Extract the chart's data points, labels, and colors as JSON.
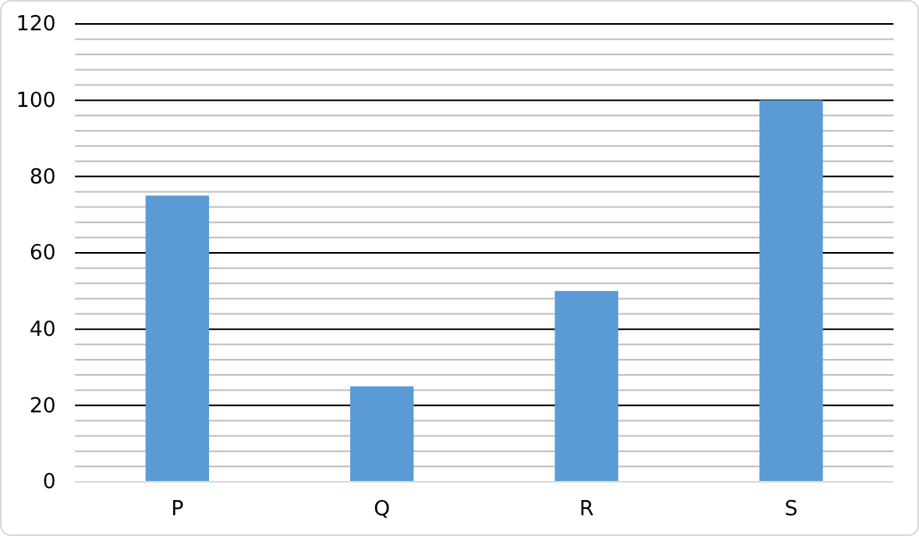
{
  "chart_data": {
    "type": "bar",
    "categories": [
      "P",
      "Q",
      "R",
      "S"
    ],
    "values": [
      75,
      25,
      50,
      100
    ],
    "color": "#5b9bd5",
    "ylim": [
      0,
      120
    ],
    "yticks": [
      0,
      {
        "value": 4,
        "label": null
      },
      {
        "value": 8,
        "label": null
      },
      {
        "value": 12,
        "label": null
      },
      {
        "value": 16,
        "label": null
      },
      20,
      {
        "value": 24,
        "label": null
      },
      {
        "value": 28,
        "label": null
      },
      {
        "value": 32,
        "label": null
      },
      {
        "value": 36,
        "label": null
      },
      40,
      {
        "value": 44,
        "label": null
      },
      {
        "value": 48,
        "label": null
      },
      {
        "value": 52,
        "label": null
      },
      {
        "value": 56,
        "label": null
      },
      60,
      {
        "value": 64,
        "label": null
      },
      {
        "value": 68,
        "label": null
      },
      {
        "value": 72,
        "label": null
      },
      {
        "value": 76,
        "label": null
      },
      80,
      {
        "value": 84,
        "label": null
      },
      {
        "value": 88,
        "label": null
      },
      {
        "value": 92,
        "label": null
      },
      {
        "value": 96,
        "label": null
      },
      100,
      {
        "value": 104,
        "label": null
      },
      {
        "value": 108,
        "label": null
      },
      {
        "value": 112,
        "label": null
      },
      {
        "value": 116,
        "label": null
      },
      120
    ],
    "grid": "y"
  }
}
